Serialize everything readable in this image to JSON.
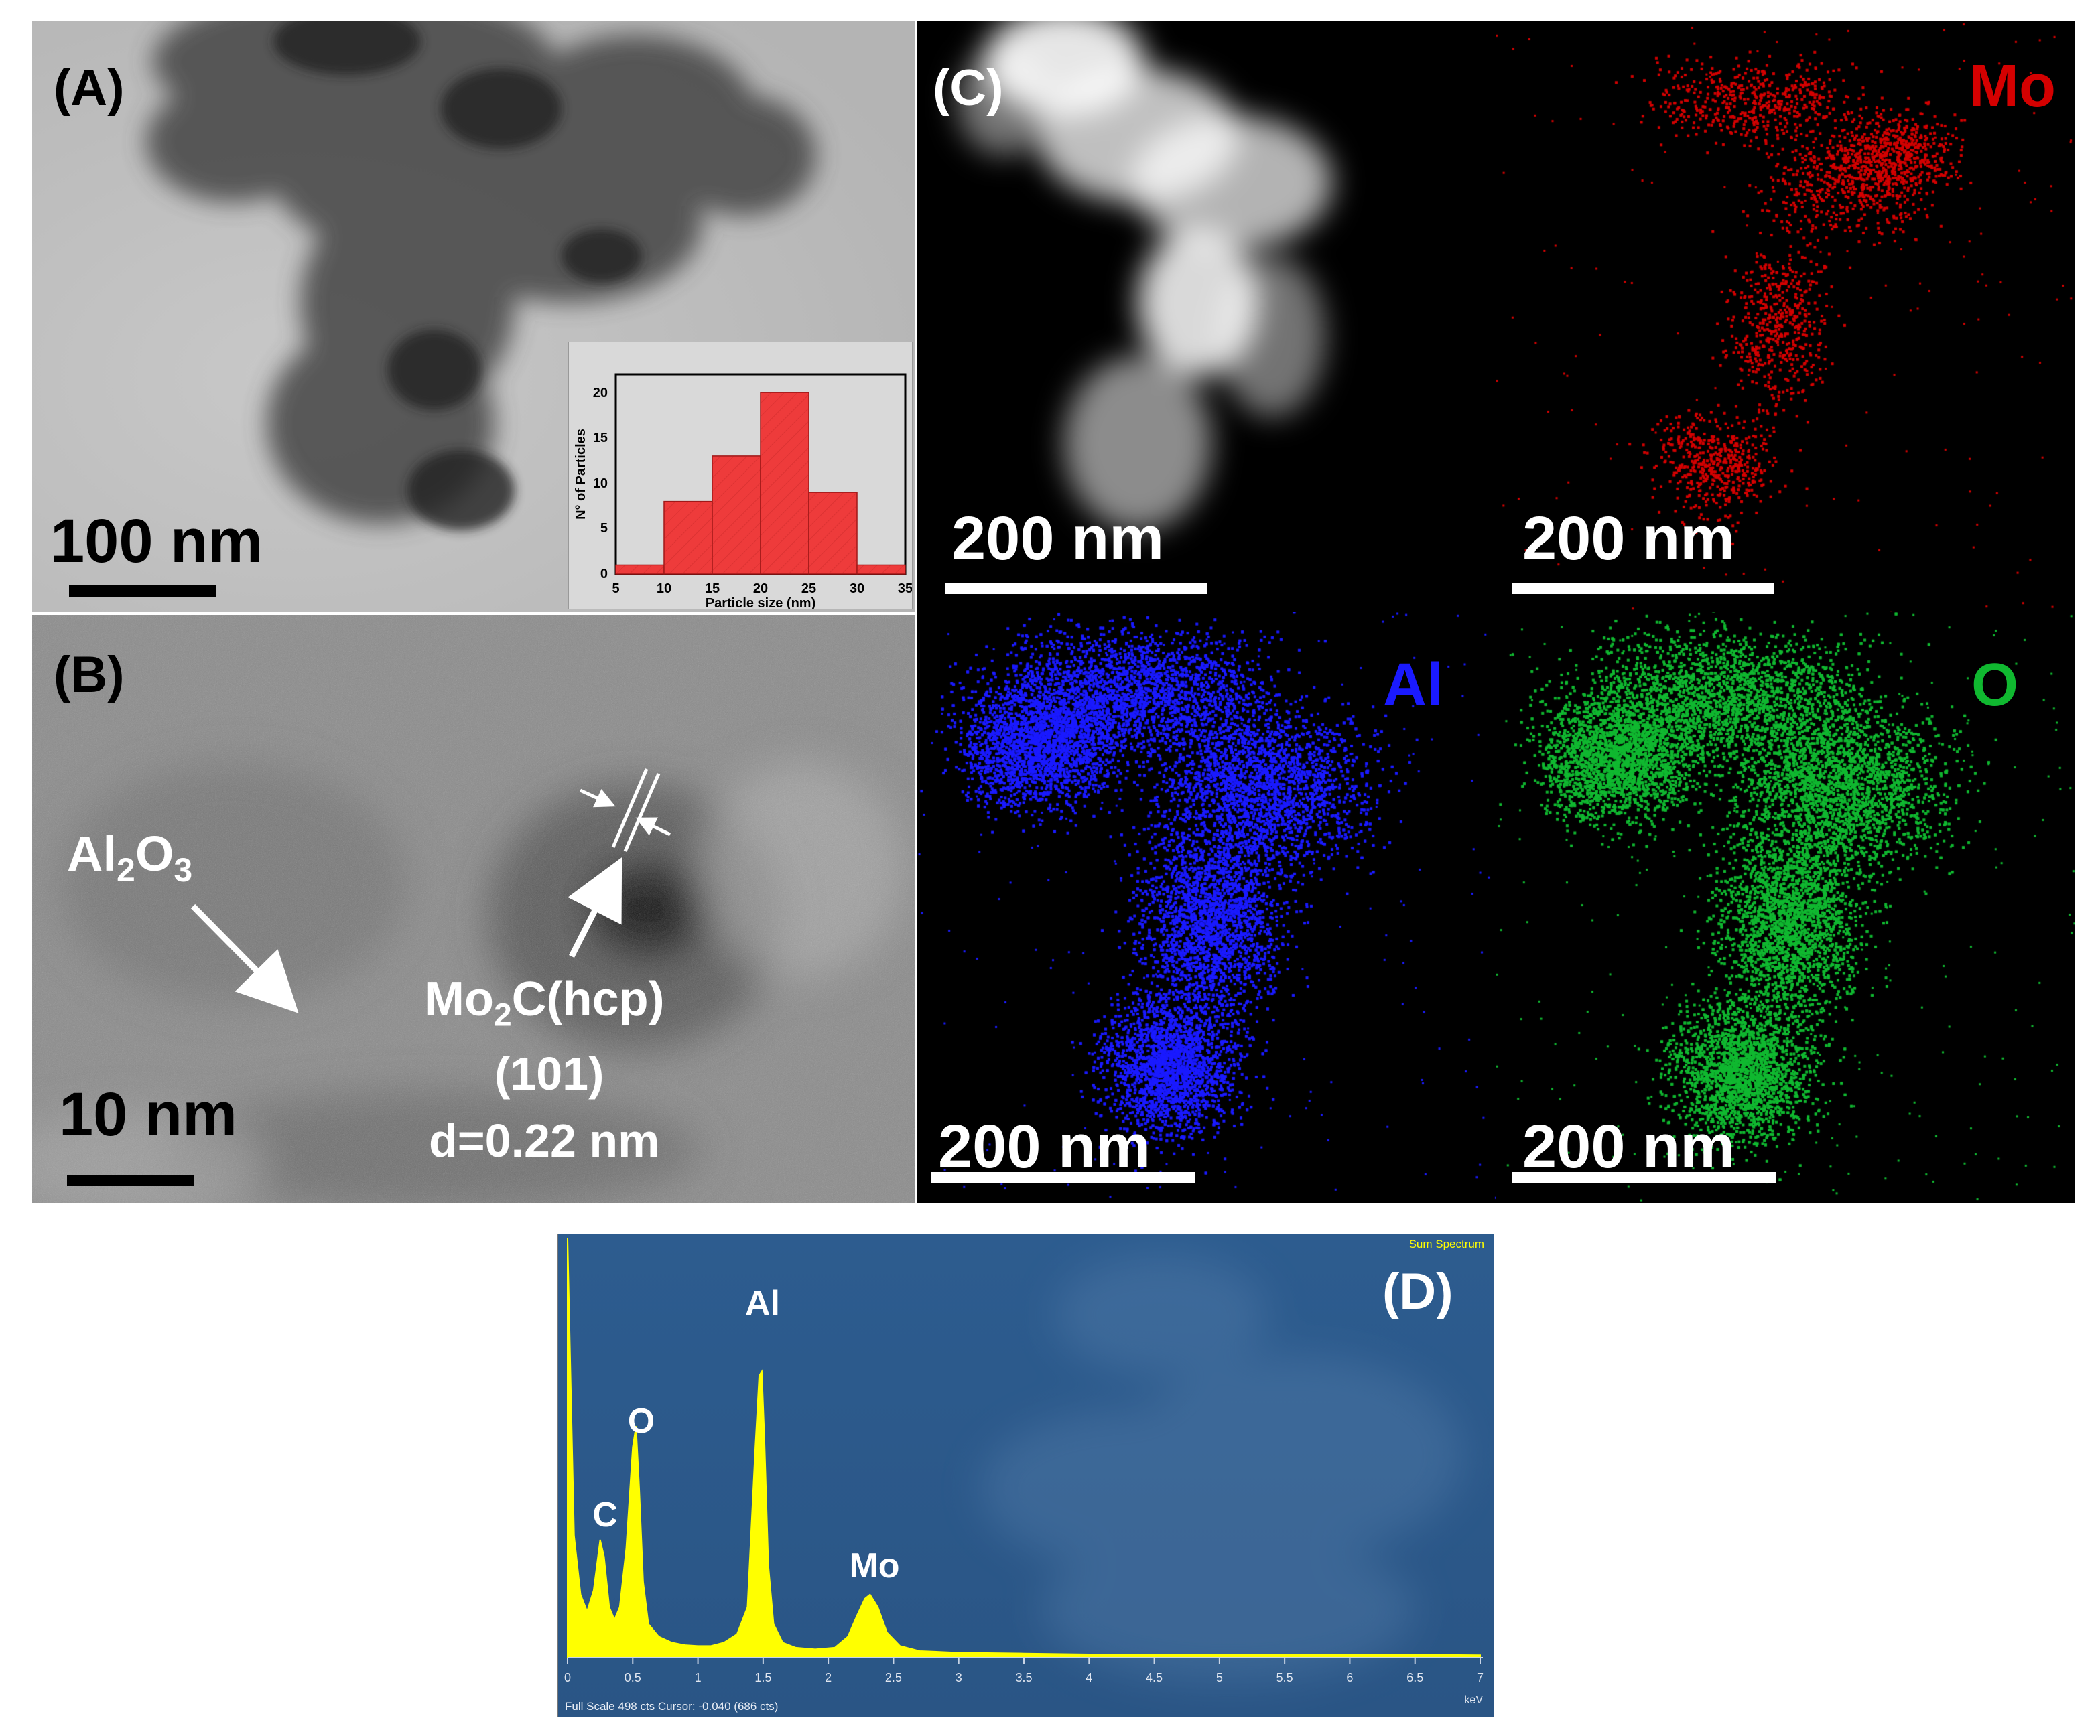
{
  "panels": {
    "a": {
      "label": "(A)",
      "scale": "100 nm",
      "inset": {
        "ylabel": "N° of Particles",
        "xlabel": "Particle size (nm)",
        "xticks": [
          "5",
          "10",
          "15",
          "20",
          "25",
          "30",
          "35"
        ],
        "yticks": [
          "0",
          "5",
          "10",
          "15",
          "20"
        ]
      }
    },
    "b": {
      "label": "(B)",
      "scale": "10 nm",
      "al2o3_main": "Al",
      "al2o3_sub1": "2",
      "al2o3_o": "O",
      "al2o3_sub2": "3",
      "mo2c_mo": "Mo",
      "mo2c_sub": "2",
      "mo2c_rest": "C(hcp)",
      "plane": "(101)",
      "dspacing": "d=0.22 nm"
    },
    "c": {
      "label": "(C)",
      "scale_haadf": "200 nm",
      "scale_mo": "200 nm",
      "scale_al": "200 nm",
      "scale_o": "200 nm",
      "mo": "Mo",
      "al": "Al",
      "o": "O"
    },
    "d": {
      "label": "(D)",
      "title": "Sum Spectrum",
      "footer": "Full Scale 498 cts Cursor: -0.040  (686 cts)",
      "unit": "keV",
      "xticks": [
        "0",
        "0.5",
        "1",
        "1.5",
        "2",
        "2.5",
        "3",
        "3.5",
        "4",
        "4.5",
        "5",
        "5.5",
        "6",
        "6.5",
        "7"
      ],
      "peaks": {
        "c": "C",
        "o": "O",
        "al": "Al",
        "mo": "Mo"
      }
    }
  },
  "colors": {
    "mo": "#d40000",
    "al": "#1a1aff",
    "o": "#10b830",
    "spectrum": "#ffff00",
    "spectrum_bg": "#2c5a8c",
    "histogram": "#ee3b3b"
  },
  "chart_data": [
    {
      "type": "bar",
      "categories": [
        "5-10",
        "10-15",
        "15-20",
        "20-25",
        "25-30",
        "30-35"
      ],
      "values": [
        1,
        8,
        13,
        20,
        9,
        1
      ],
      "xlabel": "Particle size (nm)",
      "ylabel": "N° of Particles",
      "xlim": [
        5,
        35
      ],
      "ylim": [
        0,
        22
      ]
    },
    {
      "type": "line",
      "xlabel": "keV",
      "xlim": [
        0,
        7
      ],
      "series": [
        {
          "x": [
            0.0,
            0.05,
            0.1,
            0.15,
            0.2,
            0.25,
            0.28,
            0.32,
            0.36,
            0.4,
            0.45,
            0.5,
            0.525,
            0.55,
            0.58,
            0.62,
            0.7,
            0.8,
            0.9,
            1.0,
            1.1,
            1.2,
            1.3,
            1.38,
            1.44,
            1.47,
            1.49,
            1.51,
            1.54,
            1.58,
            1.65,
            1.75,
            1.9,
            2.05,
            2.15,
            2.22,
            2.28,
            2.32,
            2.38,
            2.45,
            2.55,
            2.7,
            3.0,
            3.5,
            4.0,
            5.0,
            6.0,
            7.0
          ],
          "values": [
            498,
            145,
            75,
            55,
            80,
            140,
            120,
            60,
            45,
            60,
            130,
            250,
            275,
            200,
            90,
            40,
            25,
            18,
            15,
            14,
            14,
            18,
            28,
            60,
            250,
            335,
            340,
            260,
            110,
            40,
            18,
            12,
            10,
            12,
            25,
            50,
            70,
            75,
            60,
            30,
            14,
            8,
            6,
            5,
            4,
            4,
            4,
            3
          ]
        }
      ],
      "peak_labels": [
        "C",
        "O",
        "Al",
        "Mo"
      ]
    }
  ]
}
